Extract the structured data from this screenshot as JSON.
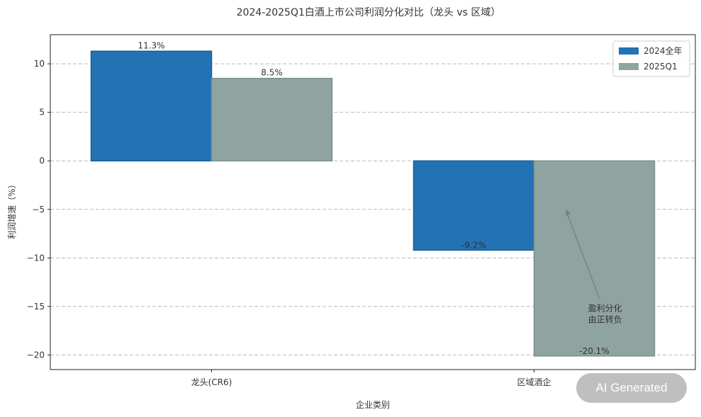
{
  "chart_data": {
    "type": "bar",
    "title": "2024-2025Q1白酒上市公司利润分化对比（龙头 vs 区域）",
    "xlabel": "企业类别",
    "ylabel": "利润增速（%）",
    "categories": [
      "龙头(CR6)",
      "区域酒企"
    ],
    "series": [
      {
        "name": "2024全年",
        "values": [
          11.3,
          -9.2
        ],
        "labels": [
          "11.3%",
          "-9.2%"
        ],
        "color": "#2272b4"
      },
      {
        "name": "2025Q1",
        "values": [
          8.5,
          -20.1
        ],
        "labels": [
          "8.5%",
          "-20.1%"
        ],
        "color": "#8fa3a1"
      }
    ],
    "ylim": [
      -21.5,
      13
    ],
    "yticks": [
      10,
      5,
      0,
      -5,
      -10,
      -15,
      -20
    ],
    "ytick_labels": [
      "10",
      "5",
      "0",
      "−5",
      "−10",
      "−15",
      "−20"
    ],
    "grid": true,
    "legend": "top-right",
    "annotation": {
      "text_lines": [
        "盈利分化",
        "由正转负"
      ],
      "text_at": {
        "category": 1,
        "offset": 0.22,
        "value": -15.5
      },
      "arrow_to": {
        "category": 1,
        "offset": 0.1,
        "value": -5
      }
    }
  },
  "watermark": "AI Generated"
}
